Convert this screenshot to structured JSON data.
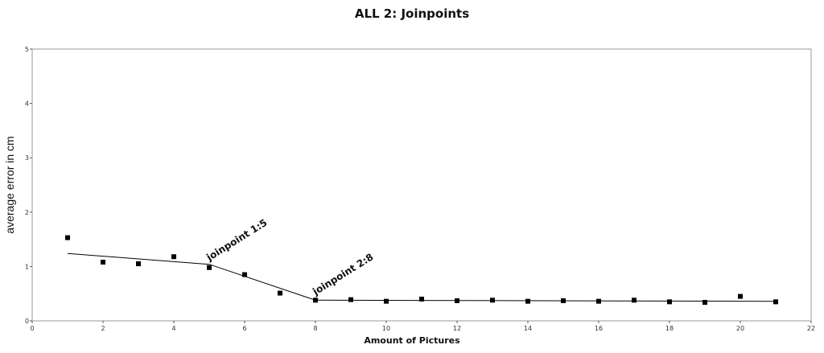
{
  "chart_data": {
    "type": "scatter",
    "title": "ALL 2: Joinpoints",
    "xlabel": "Amount  of Pictures",
    "ylabel": "average error in cm",
    "xlim": [
      0,
      22
    ],
    "ylim": [
      0,
      5
    ],
    "x_ticks": [
      "0",
      "2",
      "4",
      "6",
      "8",
      "10",
      "12",
      "14",
      "16",
      "18",
      "20",
      "22"
    ],
    "y_ticks": [
      "0",
      "1",
      "2",
      "3",
      "4",
      "5"
    ],
    "grid": false,
    "series": [
      {
        "type": "scatter",
        "marker": "square",
        "color": "#000000",
        "x": [
          1,
          2,
          3,
          4,
          5,
          6,
          7,
          8,
          9,
          10,
          11,
          12,
          13,
          14,
          15,
          16,
          17,
          18,
          19,
          20,
          21
        ],
        "y": [
          1.53,
          1.08,
          1.05,
          1.18,
          0.98,
          0.85,
          0.51,
          0.38,
          0.39,
          0.36,
          0.4,
          0.37,
          0.38,
          0.36,
          0.37,
          0.36,
          0.38,
          0.35,
          0.34,
          0.45,
          0.35
        ]
      },
      {
        "type": "line",
        "color": "#000000",
        "x": [
          1,
          5,
          8,
          21
        ],
        "y": [
          1.24,
          1.04,
          0.38,
          0.36
        ]
      }
    ],
    "annotations": [
      {
        "text": "joinpoint 1:5",
        "x": 5.0,
        "y": 1.1
      },
      {
        "text": "joinpoint 2:8",
        "x": 8.0,
        "y": 0.47
      }
    ]
  }
}
